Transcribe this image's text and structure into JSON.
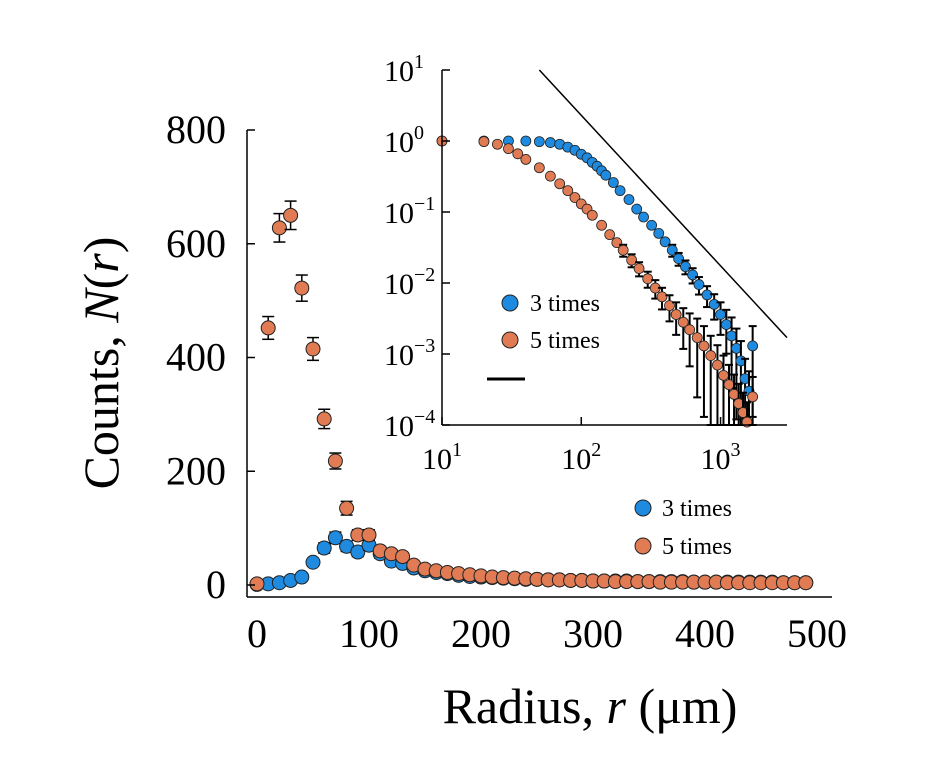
{
  "chart_data": [
    {
      "type": "scatter",
      "xlabel": "Radius, r (μm)",
      "ylabel": "Counts, N(r)",
      "xlabel_parts": {
        "prefix": "Radius, ",
        "var": "r",
        "suffix": " (μm)"
      },
      "ylabel_parts": {
        "prefix": "Counts, ",
        "var": "N",
        "open": "(",
        "arg": "r",
        "close": ")"
      },
      "xlim": [
        0,
        500
      ],
      "ylim": [
        0,
        800
      ],
      "xticks": [
        "0",
        "100",
        "200",
        "300",
        "400",
        "500"
      ],
      "yticks": [
        "0",
        "200",
        "400",
        "600",
        "800"
      ],
      "legend": "lower right",
      "series": [
        {
          "name": "3 times",
          "color": "#1f8be0",
          "x": [
            0,
            10,
            20,
            30,
            40,
            50,
            60,
            70,
            80,
            90,
            100,
            110,
            120,
            130,
            140,
            150,
            160,
            170,
            180,
            190,
            200,
            210,
            220,
            230,
            240,
            250,
            260,
            270,
            280,
            290,
            300,
            310,
            320,
            330,
            340,
            350,
            360,
            370,
            380,
            390,
            400,
            410,
            420,
            430,
            440,
            450,
            460,
            470,
            480,
            490
          ],
          "y": [
            1,
            2,
            4,
            8,
            14,
            40,
            65,
            83,
            68,
            58,
            70,
            55,
            42,
            38,
            30,
            25,
            22,
            20,
            17,
            15,
            14,
            13,
            12,
            11,
            10,
            10,
            9,
            9,
            8,
            8,
            7,
            7,
            7,
            7,
            6,
            6,
            6,
            6,
            6,
            5,
            5,
            5,
            5,
            5,
            5,
            5,
            5,
            4,
            4,
            4
          ],
          "err": [
            2,
            2,
            3,
            4,
            5,
            7,
            9,
            10,
            9,
            8,
            9,
            8,
            7,
            6,
            6,
            5,
            5,
            5,
            4,
            4,
            4,
            4,
            4,
            4,
            3,
            3,
            3,
            3,
            3,
            3,
            3,
            3,
            3,
            3,
            3,
            3,
            3,
            3,
            3,
            3,
            3,
            3,
            3,
            3,
            3,
            3,
            3,
            3,
            3,
            3
          ]
        },
        {
          "name": "5 times",
          "color": "#e07b54",
          "x": [
            0,
            10,
            20,
            30,
            40,
            50,
            60,
            70,
            80,
            90,
            100,
            110,
            120,
            130,
            140,
            150,
            160,
            170,
            180,
            190,
            200,
            210,
            220,
            230,
            240,
            250,
            260,
            270,
            280,
            290,
            300,
            310,
            320,
            330,
            340,
            350,
            360,
            370,
            380,
            390,
            400,
            410,
            420,
            430,
            440,
            450,
            460,
            470,
            480,
            490
          ],
          "y": [
            2,
            452,
            628,
            650,
            522,
            415,
            292,
            218,
            135,
            88,
            88,
            60,
            55,
            50,
            35,
            28,
            25,
            22,
            20,
            18,
            16,
            14,
            13,
            12,
            11,
            10,
            9,
            9,
            8,
            8,
            7,
            7,
            6,
            6,
            6,
            6,
            5,
            5,
            5,
            5,
            5,
            5,
            4,
            4,
            4,
            4,
            4,
            4,
            4,
            4
          ],
          "err": [
            2,
            20,
            25,
            25,
            23,
            20,
            17,
            14,
            12,
            9,
            9,
            8,
            7,
            7,
            6,
            5,
            5,
            5,
            4,
            4,
            4,
            4,
            4,
            3,
            3,
            3,
            3,
            3,
            3,
            3,
            3,
            3,
            3,
            3,
            3,
            3,
            3,
            3,
            3,
            3,
            3,
            3,
            3,
            3,
            3,
            3,
            3,
            3,
            3,
            3
          ]
        }
      ]
    },
    {
      "type": "scatter",
      "scale": "log-log",
      "xlim": [
        10,
        3000
      ],
      "ylim": [
        0.0001,
        10
      ],
      "xticks": [
        {
          "base": "10",
          "exp": "1"
        },
        {
          "base": "10",
          "exp": "2"
        },
        {
          "base": "10",
          "exp": "3"
        }
      ],
      "yticks": [
        {
          "base": "10",
          "exp": "1"
        },
        {
          "base": "10",
          "exp": "0"
        },
        {
          "base": "10",
          "exp": "−1"
        },
        {
          "base": "10",
          "exp": "−2"
        },
        {
          "base": "10",
          "exp": "−3"
        },
        {
          "base": "10",
          "exp": "−4"
        }
      ],
      "legend": "lower left",
      "reference_line": {
        "x": [
          50,
          3000
        ],
        "y": [
          10,
          0.0017
        ]
      },
      "series": [
        {
          "name": "3 times",
          "color": "#1f8be0",
          "x": [
            10,
            20,
            30,
            40,
            50,
            60,
            70,
            80,
            90,
            100,
            110,
            120,
            130,
            140,
            150,
            170,
            190,
            220,
            250,
            280,
            320,
            360,
            400,
            450,
            500,
            560,
            630,
            700,
            800,
            900,
            1000,
            1100,
            1200,
            1300,
            1400,
            1500,
            1600,
            1700
          ],
          "y": [
            1,
            1,
            1,
            1,
            0.98,
            0.95,
            0.9,
            0.82,
            0.74,
            0.65,
            0.58,
            0.5,
            0.44,
            0.38,
            0.33,
            0.26,
            0.2,
            0.15,
            0.11,
            0.085,
            0.065,
            0.05,
            0.038,
            0.029,
            0.022,
            0.017,
            0.013,
            0.0095,
            0.0068,
            0.005,
            0.0036,
            0.0026,
            0.0018,
            0.0012,
            0.0008,
            0.00045,
            0.0003,
            0.0013
          ]
        },
        {
          "name": "5 times",
          "color": "#e07b54",
          "x": [
            10,
            20,
            25,
            30,
            35,
            40,
            50,
            60,
            70,
            80,
            90,
            100,
            110,
            120,
            140,
            160,
            180,
            200,
            230,
            260,
            300,
            340,
            380,
            430,
            480,
            540,
            600,
            680,
            760,
            850,
            950,
            1050,
            1150,
            1250,
            1350,
            1450,
            1550,
            1700
          ],
          "y": [
            1,
            0.98,
            0.9,
            0.78,
            0.66,
            0.55,
            0.42,
            0.32,
            0.25,
            0.2,
            0.16,
            0.13,
            0.11,
            0.09,
            0.065,
            0.048,
            0.037,
            0.029,
            0.021,
            0.016,
            0.0115,
            0.0085,
            0.0064,
            0.0048,
            0.0036,
            0.0028,
            0.0022,
            0.0017,
            0.0013,
            0.00095,
            0.0007,
            0.0005,
            0.00037,
            0.00027,
            0.0002,
            0.00015,
            0.00011,
            0.00025
          ]
        }
      ]
    }
  ]
}
